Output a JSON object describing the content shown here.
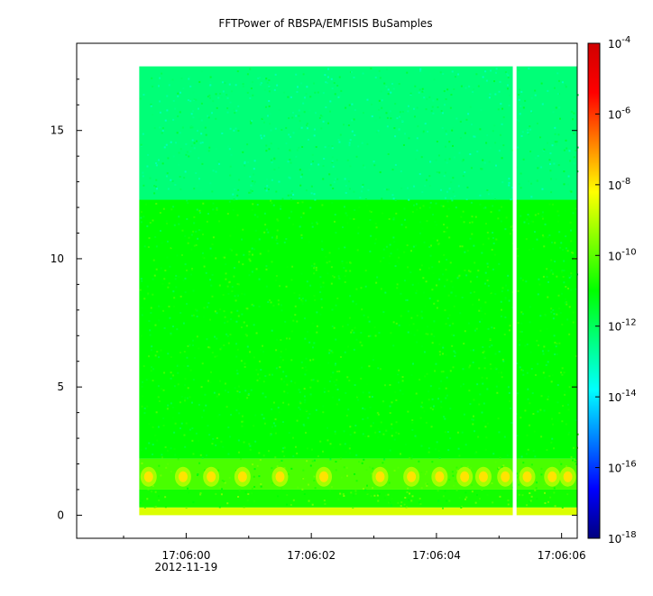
{
  "chart_data": {
    "type": "heatmap",
    "title": "FFTPower of RBSPA/EMFISIS  BuSamples",
    "xlabel": "",
    "ylabel": "",
    "x_axis": {
      "ticks": [
        {
          "value_s": 0,
          "label": "17:06:00",
          "sublabel": "2012-11-19"
        },
        {
          "value_s": 2,
          "label": "17:06:02",
          "sublabel": ""
        },
        {
          "value_s": 4,
          "label": "17:06:04",
          "sublabel": ""
        },
        {
          "value_s": 6,
          "label": "17:06:06",
          "sublabel": ""
        }
      ],
      "minor_ticks_s": [
        -1,
        1,
        3,
        5
      ],
      "xlim_s": [
        -1.75,
        6.25
      ],
      "data_range_s": [
        -0.75,
        6.25
      ],
      "gap_s": [
        5.22,
        5.28
      ]
    },
    "y_axis": {
      "ticks": [
        0,
        5,
        10,
        15
      ],
      "ylim": [
        -0.9,
        18.4
      ],
      "data_range": [
        0,
        17.5
      ]
    },
    "colorbar": {
      "scale": "log",
      "range": [
        1e-18,
        0.0001
      ],
      "ticks": [
        {
          "base": "10",
          "exp": "-4"
        },
        {
          "base": "10",
          "exp": "-6"
        },
        {
          "base": "10",
          "exp": "-8"
        },
        {
          "base": "10",
          "exp": "-10"
        },
        {
          "base": "10",
          "exp": "-12"
        },
        {
          "base": "10",
          "exp": "-14"
        },
        {
          "base": "10",
          "exp": "-16"
        },
        {
          "base": "10",
          "exp": "-18"
        }
      ],
      "colors": [
        "#00007f",
        "#0000ff",
        "#0080ff",
        "#00ffff",
        "#00ff80",
        "#00ff00",
        "#80ff00",
        "#ffff00",
        "#ff8000",
        "#ff0000",
        "#d00000"
      ]
    },
    "bands": [
      {
        "y0": 12.3,
        "y1": 17.5,
        "log_power": -12.3
      },
      {
        "y0": 2.2,
        "y1": 12.3,
        "log_power": -11.0
      },
      {
        "y0": 1.0,
        "y1": 2.2,
        "log_power": -10.2
      },
      {
        "y0": 0.3,
        "y1": 1.0,
        "log_power": -10.8
      },
      {
        "y0": 0.0,
        "y1": 0.3,
        "log_power": -8.6
      }
    ],
    "bursts_s": [
      -0.6,
      -0.05,
      0.4,
      0.9,
      1.5,
      2.2,
      3.1,
      3.6,
      4.05,
      4.45,
      4.75,
      5.1,
      5.45,
      5.85,
      6.1
    ]
  }
}
